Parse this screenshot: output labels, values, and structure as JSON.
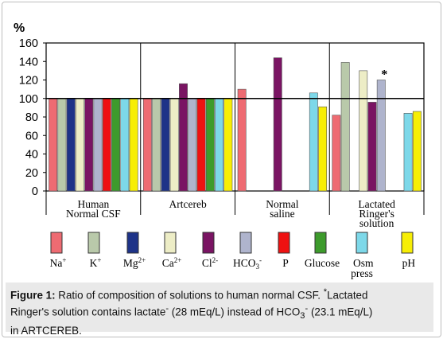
{
  "chart_data": {
    "type": "bar",
    "y_unit": "%",
    "ylim": [
      0,
      160
    ],
    "yticks": [
      0,
      20,
      40,
      60,
      80,
      100,
      120,
      140,
      160
    ],
    "reference_line": 100,
    "groups": [
      {
        "label": [
          "Human",
          "Normal CSF"
        ],
        "values": [
          100,
          100,
          100,
          100,
          100,
          100,
          100,
          100,
          100,
          100
        ]
      },
      {
        "label": [
          "Artcereb"
        ],
        "values": [
          100,
          100,
          100,
          100,
          116,
          100,
          100,
          100,
          100,
          100
        ]
      },
      {
        "label": [
          "Normal",
          "saline"
        ],
        "values": [
          110,
          null,
          null,
          null,
          144,
          null,
          null,
          null,
          106,
          91
        ]
      },
      {
        "label": [
          "Lactated",
          "Ringer's",
          "solution"
        ],
        "values": [
          82,
          139,
          null,
          130,
          96,
          120,
          null,
          null,
          84,
          86
        ]
      }
    ],
    "annotation": {
      "text": "*",
      "group": 3,
      "series": 5
    },
    "series": [
      {
        "name": "Na",
        "sup": "+",
        "sub": "",
        "color": "#ee6b72"
      },
      {
        "name": "K",
        "sup": "+",
        "sub": "",
        "color": "#b9c9aa"
      },
      {
        "name": "Mg",
        "sup": "2+",
        "sub": "",
        "color": "#1e3388"
      },
      {
        "name": "Ca",
        "sup": "2+",
        "sub": "",
        "color": "#ededc6"
      },
      {
        "name": "Cl",
        "sup": "2-",
        "sub": "",
        "color": "#7a1463"
      },
      {
        "name": "HCO",
        "sup": "-",
        "sub": "3",
        "color": "#afb4cd"
      },
      {
        "name": "P",
        "sup": "",
        "sub": "",
        "color": "#ee1111"
      },
      {
        "name": "Glucose",
        "sup": "",
        "sub": "",
        "color": "#3d9b2c"
      },
      {
        "name": "Osm",
        "sup": "",
        "sub": "",
        "name2": "press",
        "color": "#7dd8e9"
      },
      {
        "name": "pH",
        "sup": "",
        "sub": "",
        "color": "#f7ee05"
      }
    ]
  },
  "caption": {
    "label": "Figure 1:",
    "line1": " Ratio of composition of solutions to human normal CSF. ",
    "star": "*",
    "line1b": "Lactated",
    "line2a": "Ringer's solution contains lactate",
    "line2sup1": "-",
    "line2b": " (28 mEq/L) instead of HCO",
    "line2sub": "3",
    "line2sup2": "-",
    "line2c": " (23.1 mEq/L)",
    "line3": "in ARTCEREB."
  }
}
